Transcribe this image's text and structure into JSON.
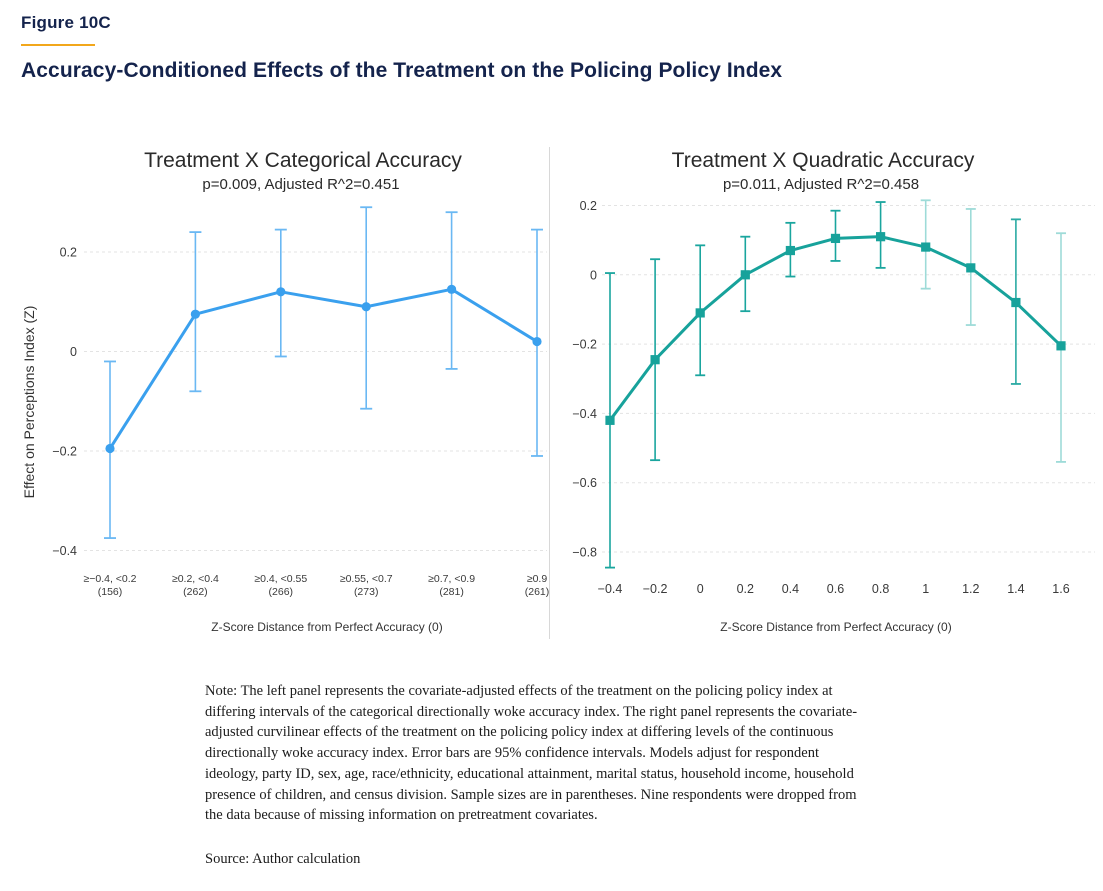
{
  "header": {
    "figure_label": "Figure 10C",
    "title": "Accuracy-Conditioned Effects of the Treatment on the Policing Policy Index",
    "accent_navy": "#14234c",
    "accent_gold": "#f2a71b"
  },
  "chart_data": [
    {
      "type": "line",
      "title": "Treatment X Categorical Accuracy",
      "subtitle": "p=0.009, Adjusted R^2=0.451",
      "xlabel": "Z-Score Distance from Perfect Accuracy (0)",
      "ylabel": "Effect on Perceptions Index (Z)",
      "categories": [
        "≥−0.4, <0.2",
        "≥0.2, <0.4",
        "≥0.4, <0.55",
        "≥0.55, <0.7",
        "≥0.7, <0.9",
        "≥0.9"
      ],
      "sample_sizes": [
        156,
        262,
        266,
        273,
        281,
        261
      ],
      "values": [
        -0.195,
        0.075,
        0.12,
        0.09,
        0.125,
        0.02
      ],
      "ci_low": [
        -0.375,
        -0.08,
        -0.01,
        -0.115,
        -0.035,
        -0.21
      ],
      "ci_high": [
        -0.02,
        0.24,
        0.245,
        0.29,
        0.28,
        0.245
      ],
      "yticks": [
        0.2,
        0,
        -0.2,
        -0.4
      ],
      "ylim": [
        -0.47,
        0.31
      ],
      "grid": "horizontal-dashed",
      "legend": "none",
      "marker": "circle",
      "line_color": "#3aa0ee",
      "errorbar_colors": [
        "#6ab8f3",
        "#6ab8f3",
        "#6ab8f3",
        "#6ab8f3",
        "#6ab8f3",
        "#6ab8f3"
      ],
      "ci_note": "95% confidence intervals"
    },
    {
      "type": "line",
      "title": "Treatment X Quadratic Accuracy",
      "subtitle": "p=0.011, Adjusted R^2=0.458",
      "xlabel": "Z-Score Distance from Perfect Accuracy (0)",
      "ylabel": "",
      "x": [
        -0.4,
        -0.2,
        0,
        0.2,
        0.4,
        0.6,
        0.8,
        1,
        1.2,
        1.4,
        1.6
      ],
      "values": [
        -0.42,
        -0.245,
        -0.11,
        0.0,
        0.07,
        0.105,
        0.11,
        0.08,
        0.02,
        -0.08,
        -0.205
      ],
      "ci_low": [
        -0.845,
        -0.535,
        -0.29,
        -0.105,
        -0.005,
        0.04,
        0.02,
        -0.04,
        -0.145,
        -0.315,
        -0.54
      ],
      "ci_high": [
        0.005,
        0.045,
        0.085,
        0.11,
        0.15,
        0.185,
        0.21,
        0.215,
        0.19,
        0.16,
        0.12
      ],
      "yticks": [
        0.2,
        0,
        -0.2,
        -0.4,
        -0.6,
        -0.8
      ],
      "ylim": [
        -0.9,
        0.27
      ],
      "grid": "horizontal-dashed",
      "legend": "none",
      "marker": "square",
      "line_color": "#17a29b",
      "errorbar_colors": [
        "#1aa59e",
        "#1aa59e",
        "#1aa59e",
        "#1aa59e",
        "#1aa59e",
        "#1aa59e",
        "#1aa59e",
        "#9edbd8",
        "#9edbd8",
        "#2aaaa3",
        "#9edbd8"
      ],
      "ci_note": "95% confidence intervals"
    }
  ],
  "footer": {
    "note": "Note: The left panel represents the covariate-adjusted effects of the treatment on the policing policy index at differing intervals of the categorical directionally woke accuracy index. The right panel represents the covariate-adjusted curvilinear effects of the treatment on the policing policy index at differing levels of the continuous directionally woke accuracy index. Error bars are 95% confidence intervals. Models adjust for respondent ideology, party ID, sex, age, race/ethnicity, educational attainment, marital status, household income, household presence of children, and census division. Sample sizes are in parentheses. Nine respondents were dropped from the data because of missing information on pretreatment covariates.",
    "source": "Source: Author calculation"
  }
}
